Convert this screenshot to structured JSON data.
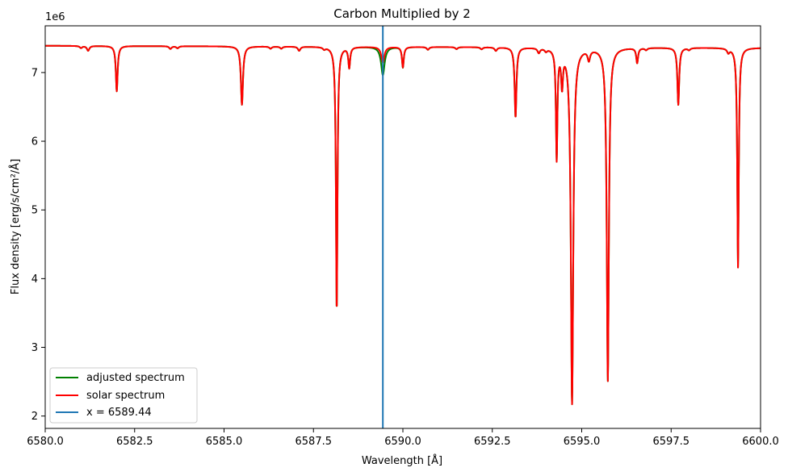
{
  "chart_data": {
    "type": "line",
    "title": "Carbon Multiplied by 2",
    "xlabel": "Wavelength [Å]",
    "ylabel": "Flux density [erg/s/cm²/Å]",
    "y_offset_text": "1e6",
    "xlim": [
      6580.0,
      6600.0
    ],
    "ylim": [
      1.82,
      7.68
    ],
    "x_ticks": [
      6580.0,
      6582.5,
      6585.0,
      6587.5,
      6590.0,
      6592.5,
      6595.0,
      6597.5,
      6600.0
    ],
    "x_tick_labels": [
      "6580.0",
      "6582.5",
      "6585.0",
      "6587.5",
      "6590.0",
      "6592.5",
      "6595.0",
      "6597.5",
      "6600.0"
    ],
    "y_ticks": [
      2,
      3,
      4,
      5,
      6,
      7
    ],
    "y_tick_labels": [
      "2",
      "3",
      "4",
      "5",
      "6",
      "7"
    ],
    "grid": false,
    "legend_position": "lower-left",
    "continuum": 7.39,
    "continuum_end": 7.36,
    "series": [
      {
        "name": "adjusted spectrum",
        "color": "#008000",
        "lines": [
          {
            "center": 6581.0,
            "depth": 0.03,
            "width": 0.04
          },
          {
            "center": 6581.2,
            "depth": 0.07,
            "width": 0.04
          },
          {
            "center": 6582.0,
            "depth": 0.66,
            "width": 0.03
          },
          {
            "center": 6583.5,
            "depth": 0.04,
            "width": 0.04
          },
          {
            "center": 6583.7,
            "depth": 0.03,
            "width": 0.04
          },
          {
            "center": 6585.5,
            "depth": 0.85,
            "width": 0.035
          },
          {
            "center": 6586.3,
            "depth": 0.03,
            "width": 0.04
          },
          {
            "center": 6586.6,
            "depth": 0.03,
            "width": 0.04
          },
          {
            "center": 6587.1,
            "depth": 0.06,
            "width": 0.04
          },
          {
            "center": 6587.8,
            "depth": 0.03,
            "width": 0.04
          },
          {
            "center": 6588.15,
            "depth": 3.86,
            "width": 0.025
          },
          {
            "center": 6588.5,
            "depth": 0.3,
            "width": 0.03
          },
          {
            "center": 6589.44,
            "depth": 0.41,
            "width": 0.06
          },
          {
            "center": 6590.0,
            "depth": 0.3,
            "width": 0.03
          },
          {
            "center": 6590.7,
            "depth": 0.04,
            "width": 0.04
          },
          {
            "center": 6591.5,
            "depth": 0.03,
            "width": 0.04
          },
          {
            "center": 6592.2,
            "depth": 0.03,
            "width": 0.04
          },
          {
            "center": 6592.6,
            "depth": 0.05,
            "width": 0.04
          },
          {
            "center": 6593.15,
            "depth": 1.02,
            "width": 0.03
          },
          {
            "center": 6593.8,
            "depth": 0.07,
            "width": 0.04
          },
          {
            "center": 6594.0,
            "depth": 0.04,
            "width": 0.04
          },
          {
            "center": 6594.3,
            "depth": 1.6,
            "width": 0.025
          },
          {
            "center": 6594.45,
            "depth": 0.5,
            "width": 0.03
          },
          {
            "center": 6594.73,
            "depth": 5.18,
            "width": 0.04
          },
          {
            "center": 6595.2,
            "depth": 0.15,
            "width": 0.04
          },
          {
            "center": 6595.73,
            "depth": 4.85,
            "width": 0.035
          },
          {
            "center": 6596.55,
            "depth": 0.22,
            "width": 0.03
          },
          {
            "center": 6596.8,
            "depth": 0.03,
            "width": 0.04
          },
          {
            "center": 6597.7,
            "depth": 0.83,
            "width": 0.03
          },
          {
            "center": 6598.0,
            "depth": 0.03,
            "width": 0.04
          },
          {
            "center": 6599.1,
            "depth": 0.06,
            "width": 0.04
          },
          {
            "center": 6599.37,
            "depth": 3.2,
            "width": 0.025
          }
        ]
      },
      {
        "name": "solar spectrum",
        "color": "#ff0000",
        "lines": [
          {
            "center": 6581.0,
            "depth": 0.03,
            "width": 0.04
          },
          {
            "center": 6581.2,
            "depth": 0.07,
            "width": 0.04
          },
          {
            "center": 6582.0,
            "depth": 0.66,
            "width": 0.03
          },
          {
            "center": 6583.5,
            "depth": 0.04,
            "width": 0.04
          },
          {
            "center": 6583.7,
            "depth": 0.03,
            "width": 0.04
          },
          {
            "center": 6585.5,
            "depth": 0.85,
            "width": 0.035
          },
          {
            "center": 6586.3,
            "depth": 0.03,
            "width": 0.04
          },
          {
            "center": 6586.6,
            "depth": 0.03,
            "width": 0.04
          },
          {
            "center": 6587.1,
            "depth": 0.06,
            "width": 0.04
          },
          {
            "center": 6587.8,
            "depth": 0.03,
            "width": 0.04
          },
          {
            "center": 6588.15,
            "depth": 3.86,
            "width": 0.025
          },
          {
            "center": 6588.5,
            "depth": 0.3,
            "width": 0.03
          },
          {
            "center": 6589.44,
            "depth": 0.23,
            "width": 0.05
          },
          {
            "center": 6590.0,
            "depth": 0.3,
            "width": 0.03
          },
          {
            "center": 6590.7,
            "depth": 0.04,
            "width": 0.04
          },
          {
            "center": 6591.5,
            "depth": 0.03,
            "width": 0.04
          },
          {
            "center": 6592.2,
            "depth": 0.03,
            "width": 0.04
          },
          {
            "center": 6592.6,
            "depth": 0.05,
            "width": 0.04
          },
          {
            "center": 6593.15,
            "depth": 1.02,
            "width": 0.03
          },
          {
            "center": 6593.8,
            "depth": 0.07,
            "width": 0.04
          },
          {
            "center": 6594.0,
            "depth": 0.04,
            "width": 0.04
          },
          {
            "center": 6594.3,
            "depth": 1.6,
            "width": 0.025
          },
          {
            "center": 6594.45,
            "depth": 0.5,
            "width": 0.03
          },
          {
            "center": 6594.73,
            "depth": 5.18,
            "width": 0.04
          },
          {
            "center": 6595.2,
            "depth": 0.15,
            "width": 0.04
          },
          {
            "center": 6595.73,
            "depth": 4.85,
            "width": 0.035
          },
          {
            "center": 6596.55,
            "depth": 0.22,
            "width": 0.03
          },
          {
            "center": 6596.8,
            "depth": 0.03,
            "width": 0.04
          },
          {
            "center": 6597.7,
            "depth": 0.83,
            "width": 0.03
          },
          {
            "center": 6598.0,
            "depth": 0.03,
            "width": 0.04
          },
          {
            "center": 6599.1,
            "depth": 0.06,
            "width": 0.04
          },
          {
            "center": 6599.37,
            "depth": 3.2,
            "width": 0.025
          }
        ]
      }
    ],
    "vline": {
      "x": 6589.44,
      "label": "x = 6589.44",
      "color": "#1f77b4"
    },
    "legend": [
      {
        "label": "adjusted spectrum",
        "color": "#008000"
      },
      {
        "label": "solar spectrum",
        "color": "#ff0000"
      },
      {
        "label": "x = 6589.44",
        "color": "#1f77b4"
      }
    ]
  }
}
